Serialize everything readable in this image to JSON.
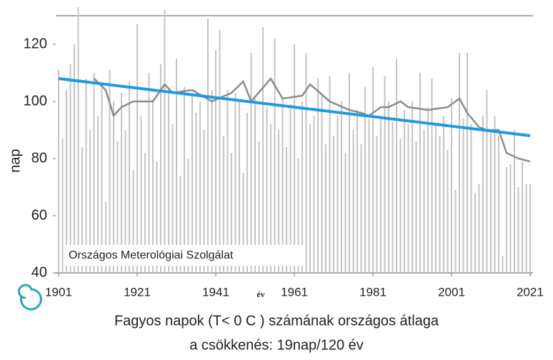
{
  "chart_data": {
    "type": "bar",
    "title": "Fagyos napok (T< 0 C  ) számának országos átlaga",
    "subtitle": "a csökkenés: 19nap/120 év",
    "xlabel": "év",
    "ylabel": "nap",
    "annotation": "Országos Meterológiai Szolgálat",
    "xlim": [
      1901,
      2021
    ],
    "xticks": [
      1901,
      1921,
      1941,
      1961,
      1981,
      2001,
      2021
    ],
    "ylim": [
      40,
      130
    ],
    "yticks": [
      40,
      60,
      80,
      100,
      120
    ],
    "series": [
      {
        "type": "bar",
        "color": "#c4c4c4",
        "x": [
          1901,
          1902,
          1903,
          1904,
          1905,
          1906,
          1907,
          1908,
          1909,
          1910,
          1911,
          1912,
          1913,
          1914,
          1915,
          1916,
          1917,
          1918,
          1919,
          1920,
          1921,
          1922,
          1923,
          1924,
          1925,
          1926,
          1927,
          1928,
          1929,
          1930,
          1931,
          1932,
          1933,
          1934,
          1935,
          1936,
          1937,
          1938,
          1939,
          1940,
          1941,
          1942,
          1943,
          1944,
          1945,
          1946,
          1947,
          1948,
          1949,
          1950,
          1951,
          1952,
          1953,
          1954,
          1955,
          1956,
          1957,
          1958,
          1959,
          1960,
          1961,
          1962,
          1963,
          1964,
          1965,
          1966,
          1967,
          1968,
          1969,
          1970,
          1971,
          1972,
          1973,
          1974,
          1975,
          1976,
          1977,
          1978,
          1979,
          1980,
          1981,
          1982,
          1983,
          1984,
          1985,
          1986,
          1987,
          1988,
          1989,
          1990,
          1991,
          1992,
          1993,
          1994,
          1995,
          1996,
          1997,
          1998,
          1999,
          2000,
          2001,
          2002,
          2003,
          2004,
          2005,
          2006,
          2007,
          2008,
          2009,
          2010,
          2011,
          2012,
          2013,
          2014,
          2015,
          2016,
          2017,
          2018,
          2019,
          2020,
          2021
        ],
        "values": [
          111,
          87,
          104,
          113,
          120,
          133,
          84,
          108,
          90,
          110,
          95,
          106,
          65,
          111,
          100,
          86,
          103,
          90,
          107,
          76,
          127,
          95,
          82,
          110,
          100,
          79,
          113,
          132,
          105,
          92,
          115,
          74,
          105,
          80,
          102,
          96,
          100,
          90,
          129,
          104,
          118,
          125,
          88,
          104,
          82,
          103,
          100,
          75,
          96,
          117,
          101,
          86,
          126,
          98,
          92,
          122,
          90,
          101,
          84,
          99,
          120,
          80,
          100,
          117,
          92,
          95,
          108,
          102,
          85,
          109,
          88,
          95,
          100,
          82,
          110,
          90,
          97,
          85,
          105,
          94,
          112,
          88,
          95,
          109,
          100,
          93,
          115,
          87,
          97,
          92,
          100,
          86,
          110,
          90,
          98,
          108,
          92,
          88,
          95,
          83,
          101,
          69,
          117,
          94,
          117,
          92,
          68,
          71,
          95,
          104,
          89,
          95,
          88,
          46,
          77,
          78,
          90,
          70,
          79,
          71,
          71
        ]
      },
      {
        "type": "line",
        "color": "#8c8c8c",
        "x": [
          1910,
          1913,
          1915,
          1917,
          1920,
          1925,
          1928,
          1930,
          1935,
          1940,
          1945,
          1948,
          1950,
          1955,
          1958,
          1963,
          1965,
          1970,
          1975,
          1978,
          1980,
          1983,
          1985,
          1988,
          1990,
          1995,
          2000,
          2003,
          2005,
          2008,
          2010,
          2013,
          2015,
          2018,
          2021
        ],
        "values": [
          108,
          104,
          95,
          98,
          100,
          100,
          106,
          103,
          104,
          100,
          103,
          107,
          100,
          108,
          101,
          102,
          106,
          100,
          97,
          96,
          95,
          98,
          98,
          100,
          98,
          97,
          98,
          101,
          96,
          91,
          90,
          90,
          82,
          80,
          79
        ]
      },
      {
        "type": "line",
        "color": "#1e9be0",
        "x": [
          1901,
          2021
        ],
        "values": [
          108,
          88
        ]
      }
    ]
  }
}
